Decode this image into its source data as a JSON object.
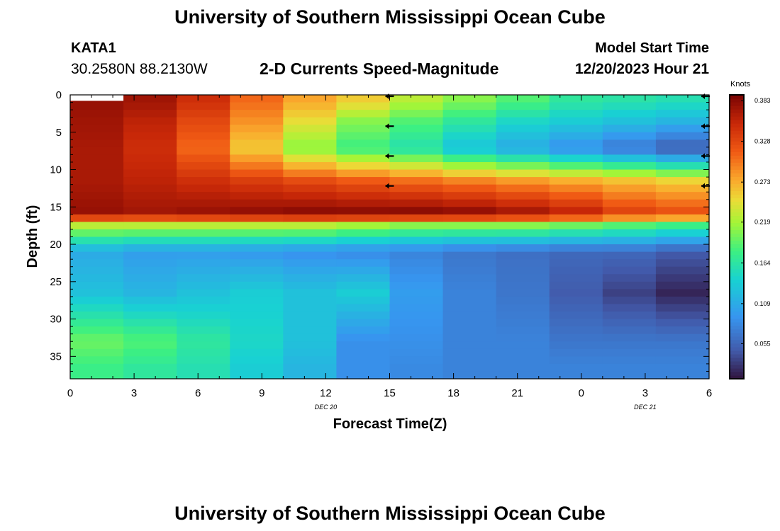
{
  "page": {
    "title": "University of Southern Mississippi Ocean Cube",
    "footer_title": "University of Southern Mississippi Ocean Cube"
  },
  "station": {
    "name": "KATA1",
    "coords": "30.2580N  88.2130W"
  },
  "model": {
    "label": "Model Start Time",
    "value": "12/20/2023 Hour 21"
  },
  "chart_data": {
    "type": "heatmap",
    "title": "2-D Currents Speed-Magnitude",
    "xlabel": "Forecast Time(Z)",
    "ylabel": "Depth (ft)",
    "x_ticks": [
      {
        "h": 0,
        "label": "0"
      },
      {
        "h": 3,
        "label": "3"
      },
      {
        "h": 6,
        "label": "6"
      },
      {
        "h": 9,
        "label": "9"
      },
      {
        "h": 12,
        "label": "12"
      },
      {
        "h": 15,
        "label": "15"
      },
      {
        "h": 18,
        "label": "18"
      },
      {
        "h": 21,
        "label": "21"
      },
      {
        "h": 24,
        "label": "0"
      },
      {
        "h": 27,
        "label": "3"
      },
      {
        "h": 30,
        "label": "6"
      }
    ],
    "date_labels": [
      {
        "h": 12,
        "label": "DEC 20"
      },
      {
        "h": 27,
        "label": "DEC 21"
      }
    ],
    "xlim": [
      0,
      30
    ],
    "y_ticks": [
      0,
      5,
      10,
      15,
      20,
      25,
      30,
      35
    ],
    "ylim": [
      0,
      38
    ],
    "colorbar": {
      "unit": "Knots",
      "ticks": [
        "0.383",
        "0.328",
        "0.273",
        "0.219",
        "0.164",
        "0.109",
        "0.055"
      ],
      "range": [
        0.0,
        0.383
      ]
    },
    "time_bins": [
      1.25,
      3.75,
      6.25,
      8.75,
      11.25,
      13.75,
      16.25,
      18.75,
      21.25,
      23.75,
      26.25,
      28.75
    ],
    "depth_bins": [
      0.75,
      3.5,
      7.2,
      11.6,
      16.0,
      17.5,
      21.0,
      26.5,
      33.0,
      36.5
    ],
    "first_col_top_gap": 0.8,
    "values": [
      [
        0.37,
        0.365,
        0.34,
        0.3,
        0.27,
        0.25,
        0.22,
        0.2,
        0.18,
        0.16,
        0.155,
        0.15
      ],
      [
        0.365,
        0.35,
        0.32,
        0.28,
        0.24,
        0.2,
        0.18,
        0.16,
        0.14,
        0.13,
        0.12,
        0.11
      ],
      [
        0.36,
        0.34,
        0.3,
        0.25,
        0.2,
        0.17,
        0.15,
        0.12,
        0.1,
        0.08,
        0.06,
        0.04
      ],
      [
        0.36,
        0.35,
        0.34,
        0.33,
        0.32,
        0.31,
        0.3,
        0.29,
        0.28,
        0.27,
        0.26,
        0.25
      ],
      [
        0.37,
        0.365,
        0.37,
        0.375,
        0.38,
        0.38,
        0.383,
        0.38,
        0.37,
        0.355,
        0.33,
        0.32
      ],
      [
        0.22,
        0.22,
        0.22,
        0.22,
        0.22,
        0.21,
        0.2,
        0.2,
        0.2,
        0.19,
        0.18,
        0.17
      ],
      [
        0.1,
        0.09,
        0.09,
        0.085,
        0.08,
        0.075,
        0.07,
        0.06,
        0.055,
        0.05,
        0.05,
        0.04
      ],
      [
        0.12,
        0.11,
        0.12,
        0.13,
        0.12,
        0.13,
        0.09,
        0.07,
        0.06,
        0.04,
        0.025,
        0.01
      ],
      [
        0.19,
        0.18,
        0.16,
        0.14,
        0.12,
        0.08,
        0.08,
        0.07,
        0.07,
        0.06,
        0.06,
        0.06
      ],
      [
        0.17,
        0.16,
        0.15,
        0.13,
        0.11,
        0.08,
        0.075,
        0.07,
        0.07,
        0.07,
        0.07,
        0.07
      ]
    ],
    "arrows": [
      {
        "h": 15,
        "depth": 0,
        "dir": "left"
      },
      {
        "h": 15,
        "depth": 4,
        "dir": "left"
      },
      {
        "h": 15,
        "depth": 8,
        "dir": "left"
      },
      {
        "h": 15,
        "depth": 12,
        "dir": "left"
      },
      {
        "h": 30,
        "depth": 0,
        "dir": "left"
      },
      {
        "h": 30,
        "depth": 4,
        "dir": "left"
      },
      {
        "h": 30,
        "depth": 8,
        "dir": "left"
      },
      {
        "h": 30,
        "depth": 12,
        "dir": "left"
      }
    ]
  }
}
